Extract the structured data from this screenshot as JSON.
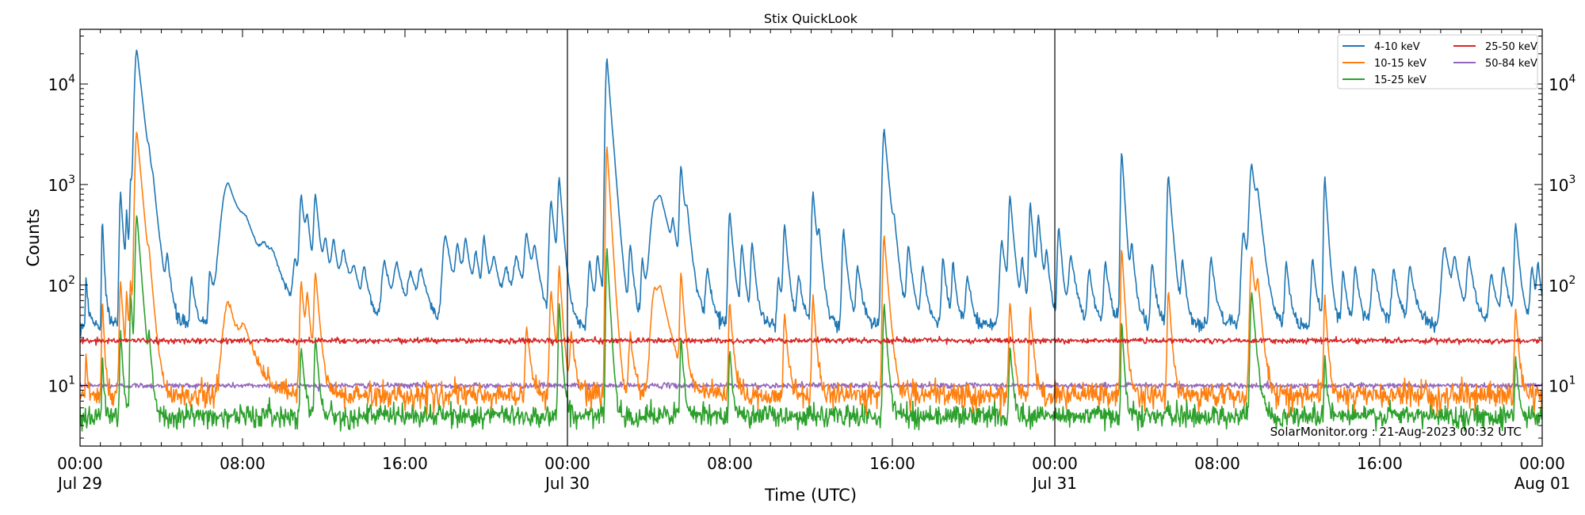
{
  "chart_data": {
    "type": "line",
    "title": "Stix QuickLook",
    "xlabel": "Time (UTC)",
    "ylabel": "Counts",
    "yscale": "log",
    "ylim": [
      2.5,
      35000
    ],
    "xlim_hours": [
      0,
      72
    ],
    "grid": false,
    "legend_position": "top-right",
    "annotation": "SolarMonitor.org : 21-Aug-2023 00:32 UTC",
    "x_ticks": [
      {
        "hour": 0,
        "line1": "00:00",
        "line2": "Jul 29"
      },
      {
        "hour": 8,
        "line1": "08:00",
        "line2": ""
      },
      {
        "hour": 16,
        "line1": "16:00",
        "line2": ""
      },
      {
        "hour": 24,
        "line1": "00:00",
        "line2": "Jul 30"
      },
      {
        "hour": 32,
        "line1": "08:00",
        "line2": ""
      },
      {
        "hour": 40,
        "line1": "16:00",
        "line2": ""
      },
      {
        "hour": 48,
        "line1": "00:00",
        "line2": "Jul 31"
      },
      {
        "hour": 56,
        "line1": "08:00",
        "line2": ""
      },
      {
        "hour": 64,
        "line1": "16:00",
        "line2": ""
      },
      {
        "hour": 72,
        "line1": "00:00",
        "line2": "Aug 01"
      }
    ],
    "y_ticks": [
      {
        "value": 10,
        "base": "10",
        "exp": "1"
      },
      {
        "value": 100,
        "base": "10",
        "exp": "2"
      },
      {
        "value": 1000,
        "base": "10",
        "exp": "3"
      },
      {
        "value": 10000,
        "base": "10",
        "exp": "4"
      }
    ],
    "day_boundaries_hours": [
      24,
      48
    ],
    "series": [
      {
        "name": "4-10 keV",
        "color": "#1f77b4",
        "baseline": 40,
        "noise": 0.09,
        "flares": [
          [
            0.3,
            85,
            0.05
          ],
          [
            1.1,
            420,
            0.05
          ],
          [
            2.0,
            800,
            0.08
          ],
          [
            2.3,
            450,
            0.06
          ],
          [
            2.5,
            1000,
            0.07
          ],
          [
            2.8,
            22000,
            0.15
          ],
          [
            3.4,
            600,
            0.08
          ],
          [
            3.6,
            300,
            0.1
          ],
          [
            4.3,
            120,
            0.1
          ],
          [
            5.5,
            80,
            0.1
          ],
          [
            6.4,
            100,
            0.1
          ],
          [
            7.3,
            1000,
            0.45
          ],
          [
            8.2,
            150,
            0.4
          ],
          [
            9.1,
            100,
            0.3
          ],
          [
            9.5,
            70,
            0.3
          ],
          [
            10.6,
            120,
            0.15
          ],
          [
            10.9,
            700,
            0.12
          ],
          [
            11.2,
            300,
            0.12
          ],
          [
            11.6,
            700,
            0.12
          ],
          [
            12.1,
            200,
            0.15
          ],
          [
            12.5,
            200,
            0.15
          ],
          [
            13.0,
            150,
            0.2
          ],
          [
            13.5,
            80,
            0.2
          ],
          [
            14.0,
            90,
            0.15
          ],
          [
            15.0,
            130,
            0.2
          ],
          [
            15.6,
            110,
            0.2
          ],
          [
            16.3,
            80,
            0.2
          ],
          [
            16.8,
            85,
            0.2
          ],
          [
            18.0,
            270,
            0.2
          ],
          [
            18.6,
            180,
            0.15
          ],
          [
            19.0,
            210,
            0.15
          ],
          [
            19.5,
            140,
            0.15
          ],
          [
            19.9,
            230,
            0.12
          ],
          [
            20.4,
            130,
            0.2
          ],
          [
            21.0,
            90,
            0.2
          ],
          [
            21.5,
            130,
            0.2
          ],
          [
            22.0,
            260,
            0.15
          ],
          [
            22.4,
            150,
            0.15
          ],
          [
            23.2,
            650,
            0.12
          ],
          [
            23.6,
            1050,
            0.1
          ],
          [
            25.1,
            130,
            0.12
          ],
          [
            25.5,
            140,
            0.12
          ],
          [
            25.95,
            18000,
            0.1
          ],
          [
            26.3,
            120,
            0.1
          ],
          [
            27.1,
            200,
            0.1
          ],
          [
            27.7,
            140,
            0.1
          ],
          [
            28.3,
            550,
            0.3
          ],
          [
            28.6,
            430,
            0.3
          ],
          [
            29.2,
            220,
            0.1
          ],
          [
            29.6,
            1400,
            0.1
          ],
          [
            29.9,
            300,
            0.12
          ],
          [
            30.9,
            100,
            0.12
          ],
          [
            32.0,
            500,
            0.1
          ],
          [
            32.6,
            200,
            0.1
          ],
          [
            33.1,
            220,
            0.1
          ],
          [
            34.4,
            80,
            0.1
          ],
          [
            34.7,
            350,
            0.1
          ],
          [
            35.4,
            80,
            0.12
          ],
          [
            36.1,
            800,
            0.1
          ],
          [
            36.4,
            200,
            0.1
          ],
          [
            37.6,
            320,
            0.1
          ],
          [
            38.3,
            110,
            0.12
          ],
          [
            39.6,
            3500,
            0.12
          ],
          [
            40.1,
            200,
            0.1
          ],
          [
            40.8,
            200,
            0.12
          ],
          [
            41.5,
            110,
            0.12
          ],
          [
            42.5,
            150,
            0.1
          ],
          [
            43.0,
            120,
            0.1
          ],
          [
            43.7,
            80,
            0.12
          ],
          [
            45.4,
            230,
            0.15
          ],
          [
            45.8,
            700,
            0.1
          ],
          [
            46.4,
            130,
            0.1
          ],
          [
            46.8,
            600,
            0.1
          ],
          [
            47.2,
            400,
            0.1
          ],
          [
            47.6,
            150,
            0.1
          ],
          [
            48.2,
            330,
            0.1
          ],
          [
            48.8,
            150,
            0.15
          ],
          [
            49.7,
            100,
            0.12
          ],
          [
            50.5,
            130,
            0.12
          ],
          [
            51.3,
            2100,
            0.08
          ],
          [
            51.8,
            180,
            0.1
          ],
          [
            52.8,
            130,
            0.1
          ],
          [
            53.6,
            1200,
            0.1
          ],
          [
            54.3,
            120,
            0.1
          ],
          [
            55.7,
            150,
            0.12
          ],
          [
            57.3,
            300,
            0.15
          ],
          [
            57.7,
            1500,
            0.15
          ],
          [
            58.0,
            400,
            0.12
          ],
          [
            59.4,
            130,
            0.1
          ],
          [
            60.7,
            150,
            0.1
          ],
          [
            61.3,
            1150,
            0.08
          ],
          [
            62.2,
            100,
            0.1
          ],
          [
            62.8,
            110,
            0.12
          ],
          [
            63.7,
            110,
            0.15
          ],
          [
            64.7,
            100,
            0.15
          ],
          [
            65.5,
            110,
            0.15
          ],
          [
            67.2,
            200,
            0.2
          ],
          [
            67.7,
            110,
            0.15
          ],
          [
            68.4,
            140,
            0.15
          ],
          [
            69.5,
            90,
            0.15
          ],
          [
            70.1,
            100,
            0.15
          ],
          [
            70.7,
            360,
            0.1
          ],
          [
            71.5,
            110,
            0.12
          ],
          [
            71.8,
            100,
            0.1
          ]
        ]
      },
      {
        "name": "10-15 keV",
        "color": "#ff7f0e",
        "baseline": 8,
        "noise": 0.14,
        "flares": [
          [
            0.3,
            12,
            0.05
          ],
          [
            1.1,
            65,
            0.05
          ],
          [
            2.0,
            100,
            0.08
          ],
          [
            2.3,
            70,
            0.06
          ],
          [
            2.5,
            90,
            0.07
          ],
          [
            2.8,
            3400,
            0.12
          ],
          [
            3.4,
            80,
            0.08
          ],
          [
            7.3,
            60,
            0.35
          ],
          [
            8.1,
            18,
            0.3
          ],
          [
            10.9,
            100,
            0.1
          ],
          [
            11.2,
            60,
            0.1
          ],
          [
            11.6,
            120,
            0.1
          ],
          [
            22.0,
            30,
            0.1
          ],
          [
            23.2,
            80,
            0.1
          ],
          [
            23.6,
            140,
            0.08
          ],
          [
            24.2,
            25,
            0.1
          ],
          [
            25.95,
            2400,
            0.08
          ],
          [
            27.1,
            25,
            0.1
          ],
          [
            28.3,
            80,
            0.25
          ],
          [
            28.6,
            50,
            0.25
          ],
          [
            29.6,
            120,
            0.08
          ],
          [
            32.0,
            60,
            0.08
          ],
          [
            34.7,
            45,
            0.08
          ],
          [
            36.1,
            70,
            0.08
          ],
          [
            39.6,
            300,
            0.1
          ],
          [
            45.8,
            60,
            0.08
          ],
          [
            46.8,
            50,
            0.08
          ],
          [
            51.3,
            230,
            0.07
          ],
          [
            53.6,
            80,
            0.08
          ],
          [
            57.7,
            180,
            0.12
          ],
          [
            58.0,
            70,
            0.1
          ],
          [
            61.3,
            70,
            0.07
          ],
          [
            70.7,
            50,
            0.08
          ]
        ]
      },
      {
        "name": "15-25 keV",
        "color": "#2ca02c",
        "baseline": 5,
        "noise": 0.13,
        "flares": [
          [
            1.1,
            16,
            0.04
          ],
          [
            2.0,
            30,
            0.06
          ],
          [
            2.5,
            80,
            0.06
          ],
          [
            2.8,
            500,
            0.1
          ],
          [
            3.4,
            20,
            0.06
          ],
          [
            10.9,
            20,
            0.08
          ],
          [
            11.6,
            25,
            0.08
          ],
          [
            23.6,
            60,
            0.07
          ],
          [
            25.95,
            230,
            0.07
          ],
          [
            29.6,
            25,
            0.07
          ],
          [
            32.0,
            18,
            0.07
          ],
          [
            39.6,
            60,
            0.08
          ],
          [
            45.8,
            20,
            0.07
          ],
          [
            51.3,
            40,
            0.06
          ],
          [
            57.7,
            80,
            0.1
          ],
          [
            61.3,
            15,
            0.06
          ],
          [
            70.7,
            14,
            0.07
          ]
        ]
      },
      {
        "name": "25-50 keV",
        "color": "#d62728",
        "baseline": 28,
        "noise": 0.03,
        "flares": []
      },
      {
        "name": "50-84 keV",
        "color": "#9467bd",
        "baseline": 10,
        "noise": 0.03,
        "flares": []
      }
    ]
  }
}
